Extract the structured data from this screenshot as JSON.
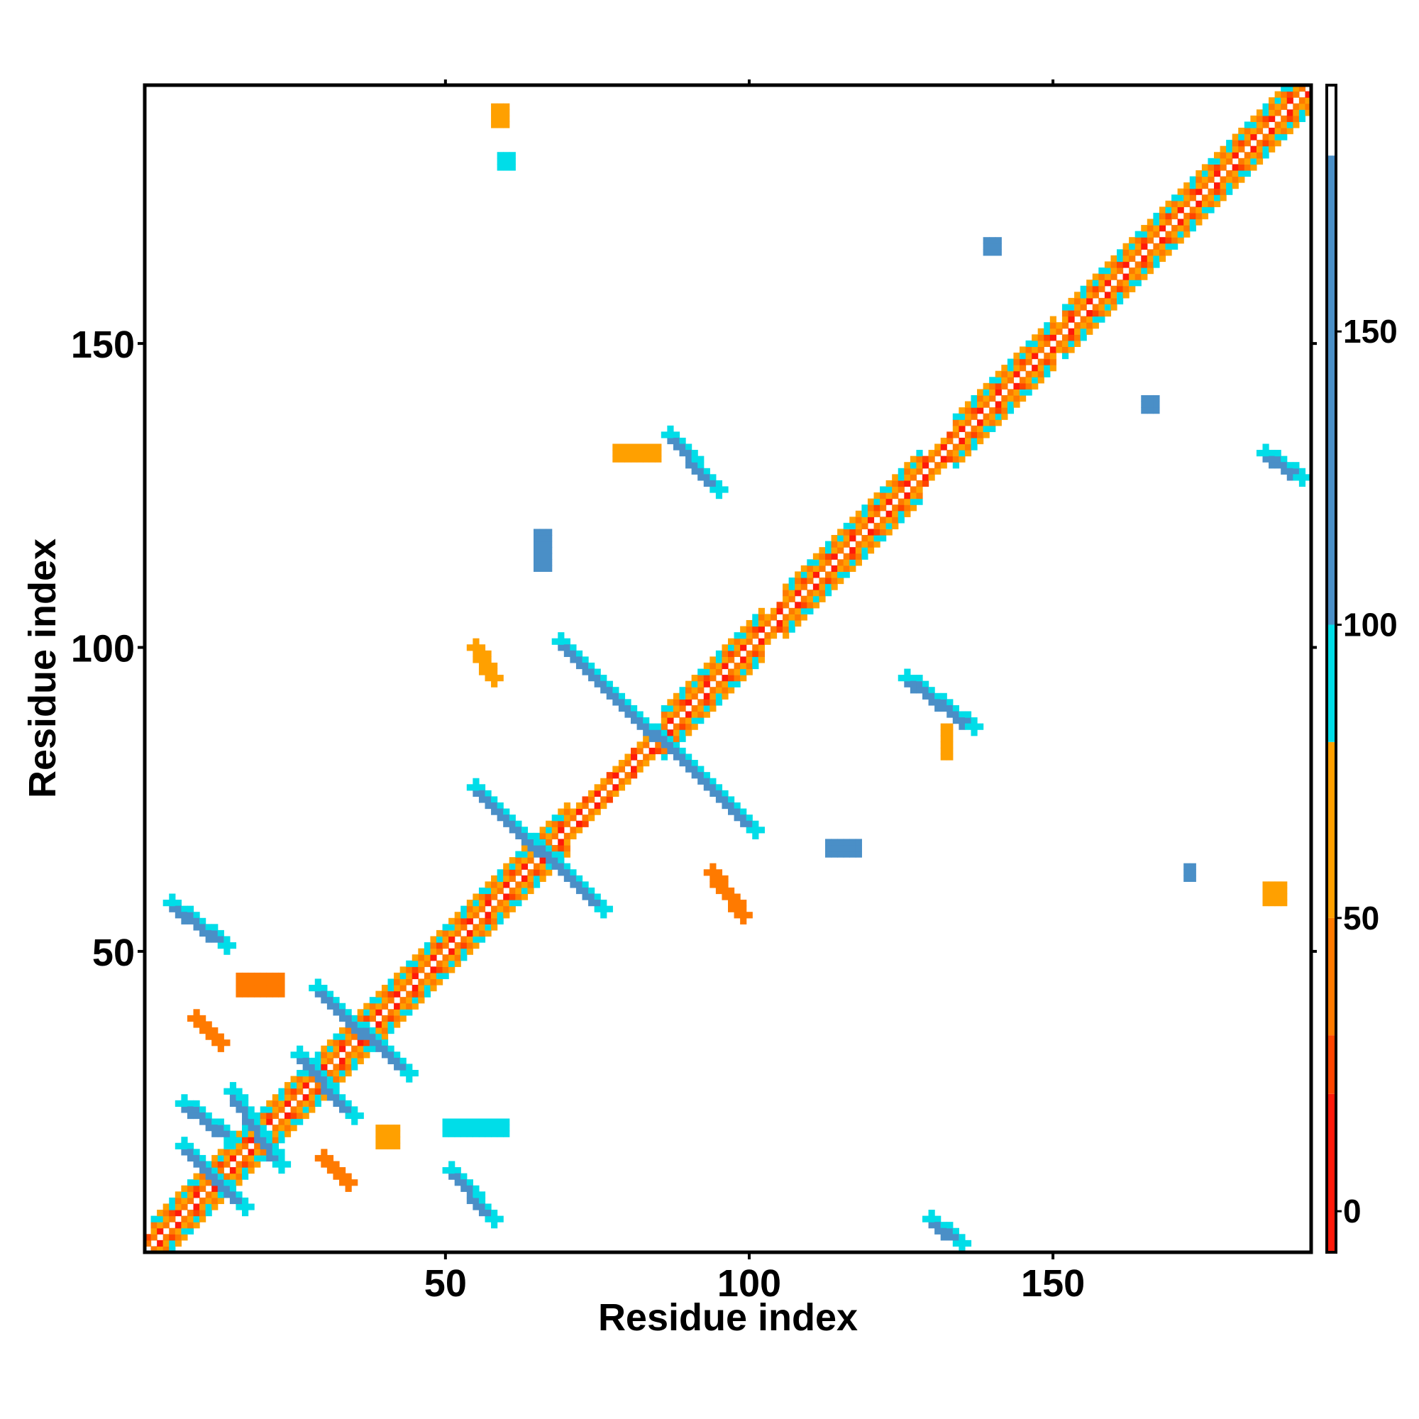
{
  "chart_data": {
    "type": "heatmap",
    "title": "",
    "xlabel": "Residue index",
    "ylabel": "Residue index",
    "xlim": [
      1,
      192
    ],
    "ylim": [
      1,
      192
    ],
    "x_ticks": [
      50,
      100,
      150
    ],
    "y_ticks": [
      50,
      100,
      150
    ],
    "grid": false,
    "legend": "colorbar-right",
    "colorbar": {
      "ticks": [
        0,
        50,
        100,
        150
      ],
      "range": [
        -7,
        192
      ],
      "colors": [
        {
          "from": -7,
          "to": 20,
          "color": "#ff1a0a"
        },
        {
          "from": 20,
          "to": 30,
          "color": "#ff4500"
        },
        {
          "from": 30,
          "to": 50,
          "color": "#ff7a00"
        },
        {
          "from": 50,
          "to": 80,
          "color": "#ffa000"
        },
        {
          "from": 80,
          "to": 100,
          "color": "#00dde8"
        },
        {
          "from": 100,
          "to": 180,
          "color": "#4a8fc7"
        },
        {
          "from": 180,
          "to": 192,
          "color": "#ffffff"
        }
      ]
    },
    "diagonal": {
      "start": 1,
      "end": 192,
      "band_width": 2
    },
    "helix_bands": [
      [
        2,
        45
      ],
      [
        46,
        60
      ],
      [
        61,
        70
      ],
      [
        86,
        102
      ],
      [
        106,
        128
      ],
      [
        134,
        150
      ],
      [
        152,
        192
      ]
    ],
    "contact_regions": [
      {
        "x": [
          7,
          17
        ],
        "y": [
          8,
          18
        ],
        "value": 120,
        "shape": "antidiagonal"
      },
      {
        "x": [
          7,
          15
        ],
        "y": [
          19,
          25
        ],
        "value": 120,
        "shape": "antidiagonal"
      },
      {
        "x": [
          15,
          23
        ],
        "y": [
          15,
          27
        ],
        "value": 120,
        "shape": "antidiagonal"
      },
      {
        "x": [
          26,
          35
        ],
        "y": [
          23,
          33
        ],
        "value": 120,
        "shape": "antidiagonal"
      },
      {
        "x": [
          29,
          44
        ],
        "y": [
          30,
          44
        ],
        "value": 120,
        "shape": "antidiagonal"
      },
      {
        "x": [
          5,
          14
        ],
        "y": [
          51,
          58
        ],
        "value": 110,
        "shape": "antidiagonal"
      },
      {
        "x": [
          51,
          58
        ],
        "y": [
          6,
          14
        ],
        "value": 110,
        "shape": "antidiagonal"
      },
      {
        "x": [
          55,
          76
        ],
        "y": [
          57,
          77
        ],
        "value": 120,
        "shape": "antidiagonal"
      },
      {
        "x": [
          69,
          101
        ],
        "y": [
          70,
          101
        ],
        "value": 120,
        "shape": "antidiagonal"
      },
      {
        "x": [
          87,
          95
        ],
        "y": [
          126,
          135
        ],
        "value": 120,
        "shape": "antidiagonal"
      },
      {
        "x": [
          126,
          137
        ],
        "y": [
          87,
          95
        ],
        "value": 120,
        "shape": "antidiagonal"
      },
      {
        "x": [
          130,
          135
        ],
        "y": [
          2,
          6
        ],
        "value": 115,
        "shape": "antidiagonal"
      },
      {
        "x": [
          185,
          191
        ],
        "y": [
          128,
          132
        ],
        "value": 115,
        "shape": "antidiagonal"
      },
      {
        "x": [
          59,
          61
        ],
        "y": [
          179,
          181
        ],
        "value": 95,
        "shape": "block"
      },
      {
        "x": [
          58,
          60
        ],
        "y": [
          186,
          189
        ],
        "value": 60,
        "shape": "block"
      },
      {
        "x": [
          139,
          141
        ],
        "y": [
          165,
          167
        ],
        "value": 120,
        "shape": "block"
      },
      {
        "x": [
          165,
          167
        ],
        "y": [
          139,
          141
        ],
        "value": 100,
        "shape": "block"
      },
      {
        "x": [
          172,
          173
        ],
        "y": [
          62,
          64
        ],
        "value": 100,
        "shape": "block"
      },
      {
        "x": [
          185,
          188
        ],
        "y": [
          58,
          61
        ],
        "value": 60,
        "shape": "block"
      },
      {
        "x": [
          113,
          118
        ],
        "y": [
          66,
          68
        ],
        "value": 100,
        "shape": "block"
      },
      {
        "x": [
          65,
          67
        ],
        "y": [
          113,
          119
        ],
        "value": 100,
        "shape": "block"
      },
      {
        "x": [
          55,
          58
        ],
        "y": [
          95,
          100
        ],
        "value": 50,
        "shape": "antidiagonal"
      },
      {
        "x": [
          94,
          99
        ],
        "y": [
          56,
          63
        ],
        "value": 40,
        "shape": "antidiagonal"
      },
      {
        "x": [
          16,
          23
        ],
        "y": [
          43,
          46
        ],
        "value": 40,
        "shape": "block"
      },
      {
        "x": [
          9,
          13
        ],
        "y": [
          35,
          39
        ],
        "value": 45,
        "shape": "antidiagonal"
      },
      {
        "x": [
          30,
          34
        ],
        "y": [
          12,
          16
        ],
        "value": 45,
        "shape": "antidiagonal"
      },
      {
        "x": [
          39,
          42
        ],
        "y": [
          18,
          21
        ],
        "value": 55,
        "shape": "block"
      },
      {
        "x": [
          50,
          60
        ],
        "y": [
          20,
          22
        ],
        "value": 90,
        "shape": "block"
      },
      {
        "x": [
          78,
          85
        ],
        "y": [
          131,
          133
        ],
        "value": 60,
        "shape": "block"
      },
      {
        "x": [
          132,
          133
        ],
        "y": [
          82,
          87
        ],
        "value": 55,
        "shape": "block"
      }
    ]
  }
}
